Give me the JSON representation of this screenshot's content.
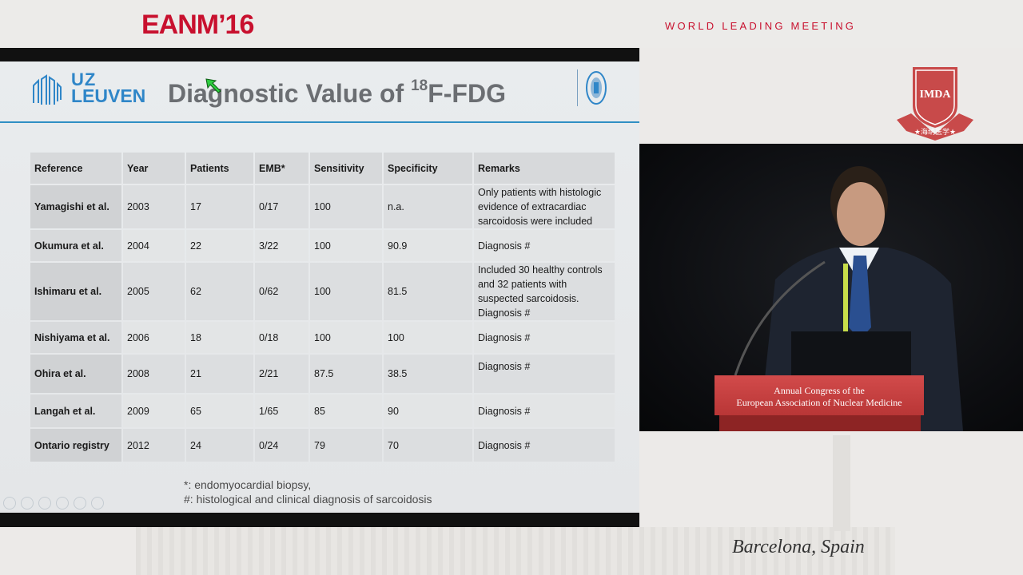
{
  "header": {
    "logo": "EANM’16",
    "tagline": "WORLD LEADING MEETING"
  },
  "slide": {
    "institution_top": "UZ",
    "institution_bottom": "LEUVEN",
    "title_prefix": "Diagnostic Value of ",
    "title_isotope": "18",
    "title_suffix": "F-FDG",
    "table": {
      "headers": [
        "Reference",
        "Year",
        "Patients",
        "EMB*",
        "Sensitivity",
        "Specificity",
        "Remarks"
      ],
      "rows": [
        [
          "Yamagishi et al.",
          "2003",
          "17",
          "0/17",
          "100",
          "n.a.",
          "Only patients with histologic evidence of extracardiac sarcoidosis were included"
        ],
        [
          "Okumura et al.",
          "2004",
          "22",
          "3/22",
          "100",
          "90.9",
          "Diagnosis #"
        ],
        [
          "Ishimaru et al.",
          "2005",
          "62",
          "0/62",
          "100",
          "81.5",
          "Included 30 healthy controls and 32 patients with suspected sarcoidosis. Diagnosis #"
        ],
        [
          "Nishiyama et al.",
          "2006",
          "18",
          "0/18",
          "100",
          "100",
          "Diagnosis #"
        ],
        [
          "Ohira et al.",
          "2008",
          "21",
          "2/21",
          "87.5",
          "38.5",
          "Diagnosis #"
        ],
        [
          "Langah et al.",
          "2009",
          "65",
          "1/65",
          "85",
          "90",
          "Diagnosis #"
        ],
        [
          "Ontario registry",
          "2012",
          "24",
          "0/24",
          "79",
          "70",
          "Diagnosis #"
        ]
      ]
    },
    "footnotes": [
      "*: endomyocardial biopsy,",
      "#: histological and clinical diagnosis of sarcoidosis"
    ]
  },
  "video": {
    "podium_line1": "Annual Congress of the",
    "podium_line2": "European Association of Nuclear Medicine"
  },
  "bg_logo_text": "IMDA",
  "bg_logo_subtext": "★海纳医学★",
  "location": "Barcelona, Spain",
  "colors": {
    "brand_red": "#c8102e",
    "uz_blue": "#2f86c8"
  }
}
